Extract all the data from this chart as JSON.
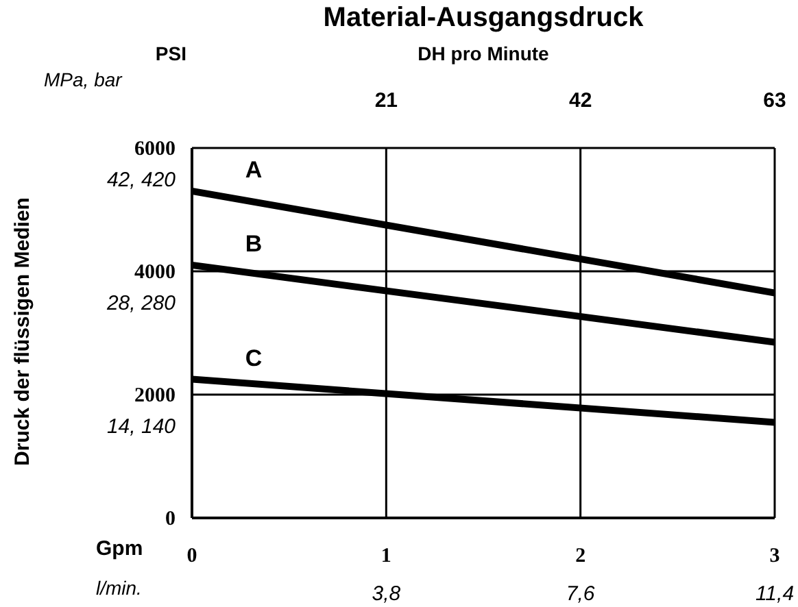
{
  "chart_data": {
    "type": "line",
    "title": "Material-Ausgangsdruck",
    "xlabel": "Gpm",
    "x2label": "DH pro Minute",
    "ylabel": "Druck der flüssigen Medien",
    "y2label": "MPa, bar",
    "annotations": [
      "PSI",
      "l/min.",
      "3,8",
      "7,6",
      "11,4",
      "14, 140",
      "28, 280",
      "42, 420"
    ],
    "x": [
      0,
      3
    ],
    "series": [
      {
        "name": "A",
        "color": "#000000",
        "values": [
          5300,
          3650
        ]
      },
      {
        "name": "B",
        "color": "#000000",
        "values": [
          4100,
          2850
        ]
      },
      {
        "name": "C",
        "color": "#000000",
        "values": [
          2250,
          1550
        ]
      }
    ],
    "xlim": [
      0,
      3
    ],
    "xticks": [
      0,
      1,
      2,
      3
    ],
    "x2lim": [
      0,
      63
    ],
    "x2ticks": [
      21,
      42,
      63
    ],
    "ylim": [
      0,
      6000
    ],
    "yticks": [
      0,
      2000,
      4000,
      6000
    ],
    "grid": true,
    "marker": "none",
    "line_style": "solid"
  }
}
